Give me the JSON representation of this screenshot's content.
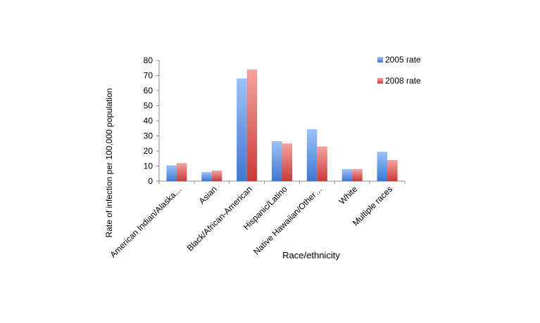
{
  "chart_data": {
    "type": "bar",
    "categories": [
      "American Indian/Alaska…",
      "Asian",
      "Black/African-American",
      "Hispanic/Latino",
      "Native Hawaiian/Other…",
      "White",
      "Multiple races"
    ],
    "series": [
      {
        "name": "2005 rate",
        "values": [
          10.5,
          6,
          68,
          26.5,
          34.5,
          8,
          19.5
        ],
        "color": "#5b8fd9"
      },
      {
        "name": "2008 rate",
        "values": [
          12,
          7,
          74,
          25,
          23,
          8,
          14
        ],
        "color": "#d9534f"
      }
    ],
    "title": "",
    "xlabel": "Race/ethnicity",
    "ylabel": "Rate of infection per 100,000 population",
    "ylim": [
      0,
      80
    ],
    "yticks": [
      "0",
      "10",
      "20",
      "30",
      "40",
      "50",
      "60",
      "70",
      "80"
    ],
    "grid": false,
    "legend_position": "top-right"
  }
}
